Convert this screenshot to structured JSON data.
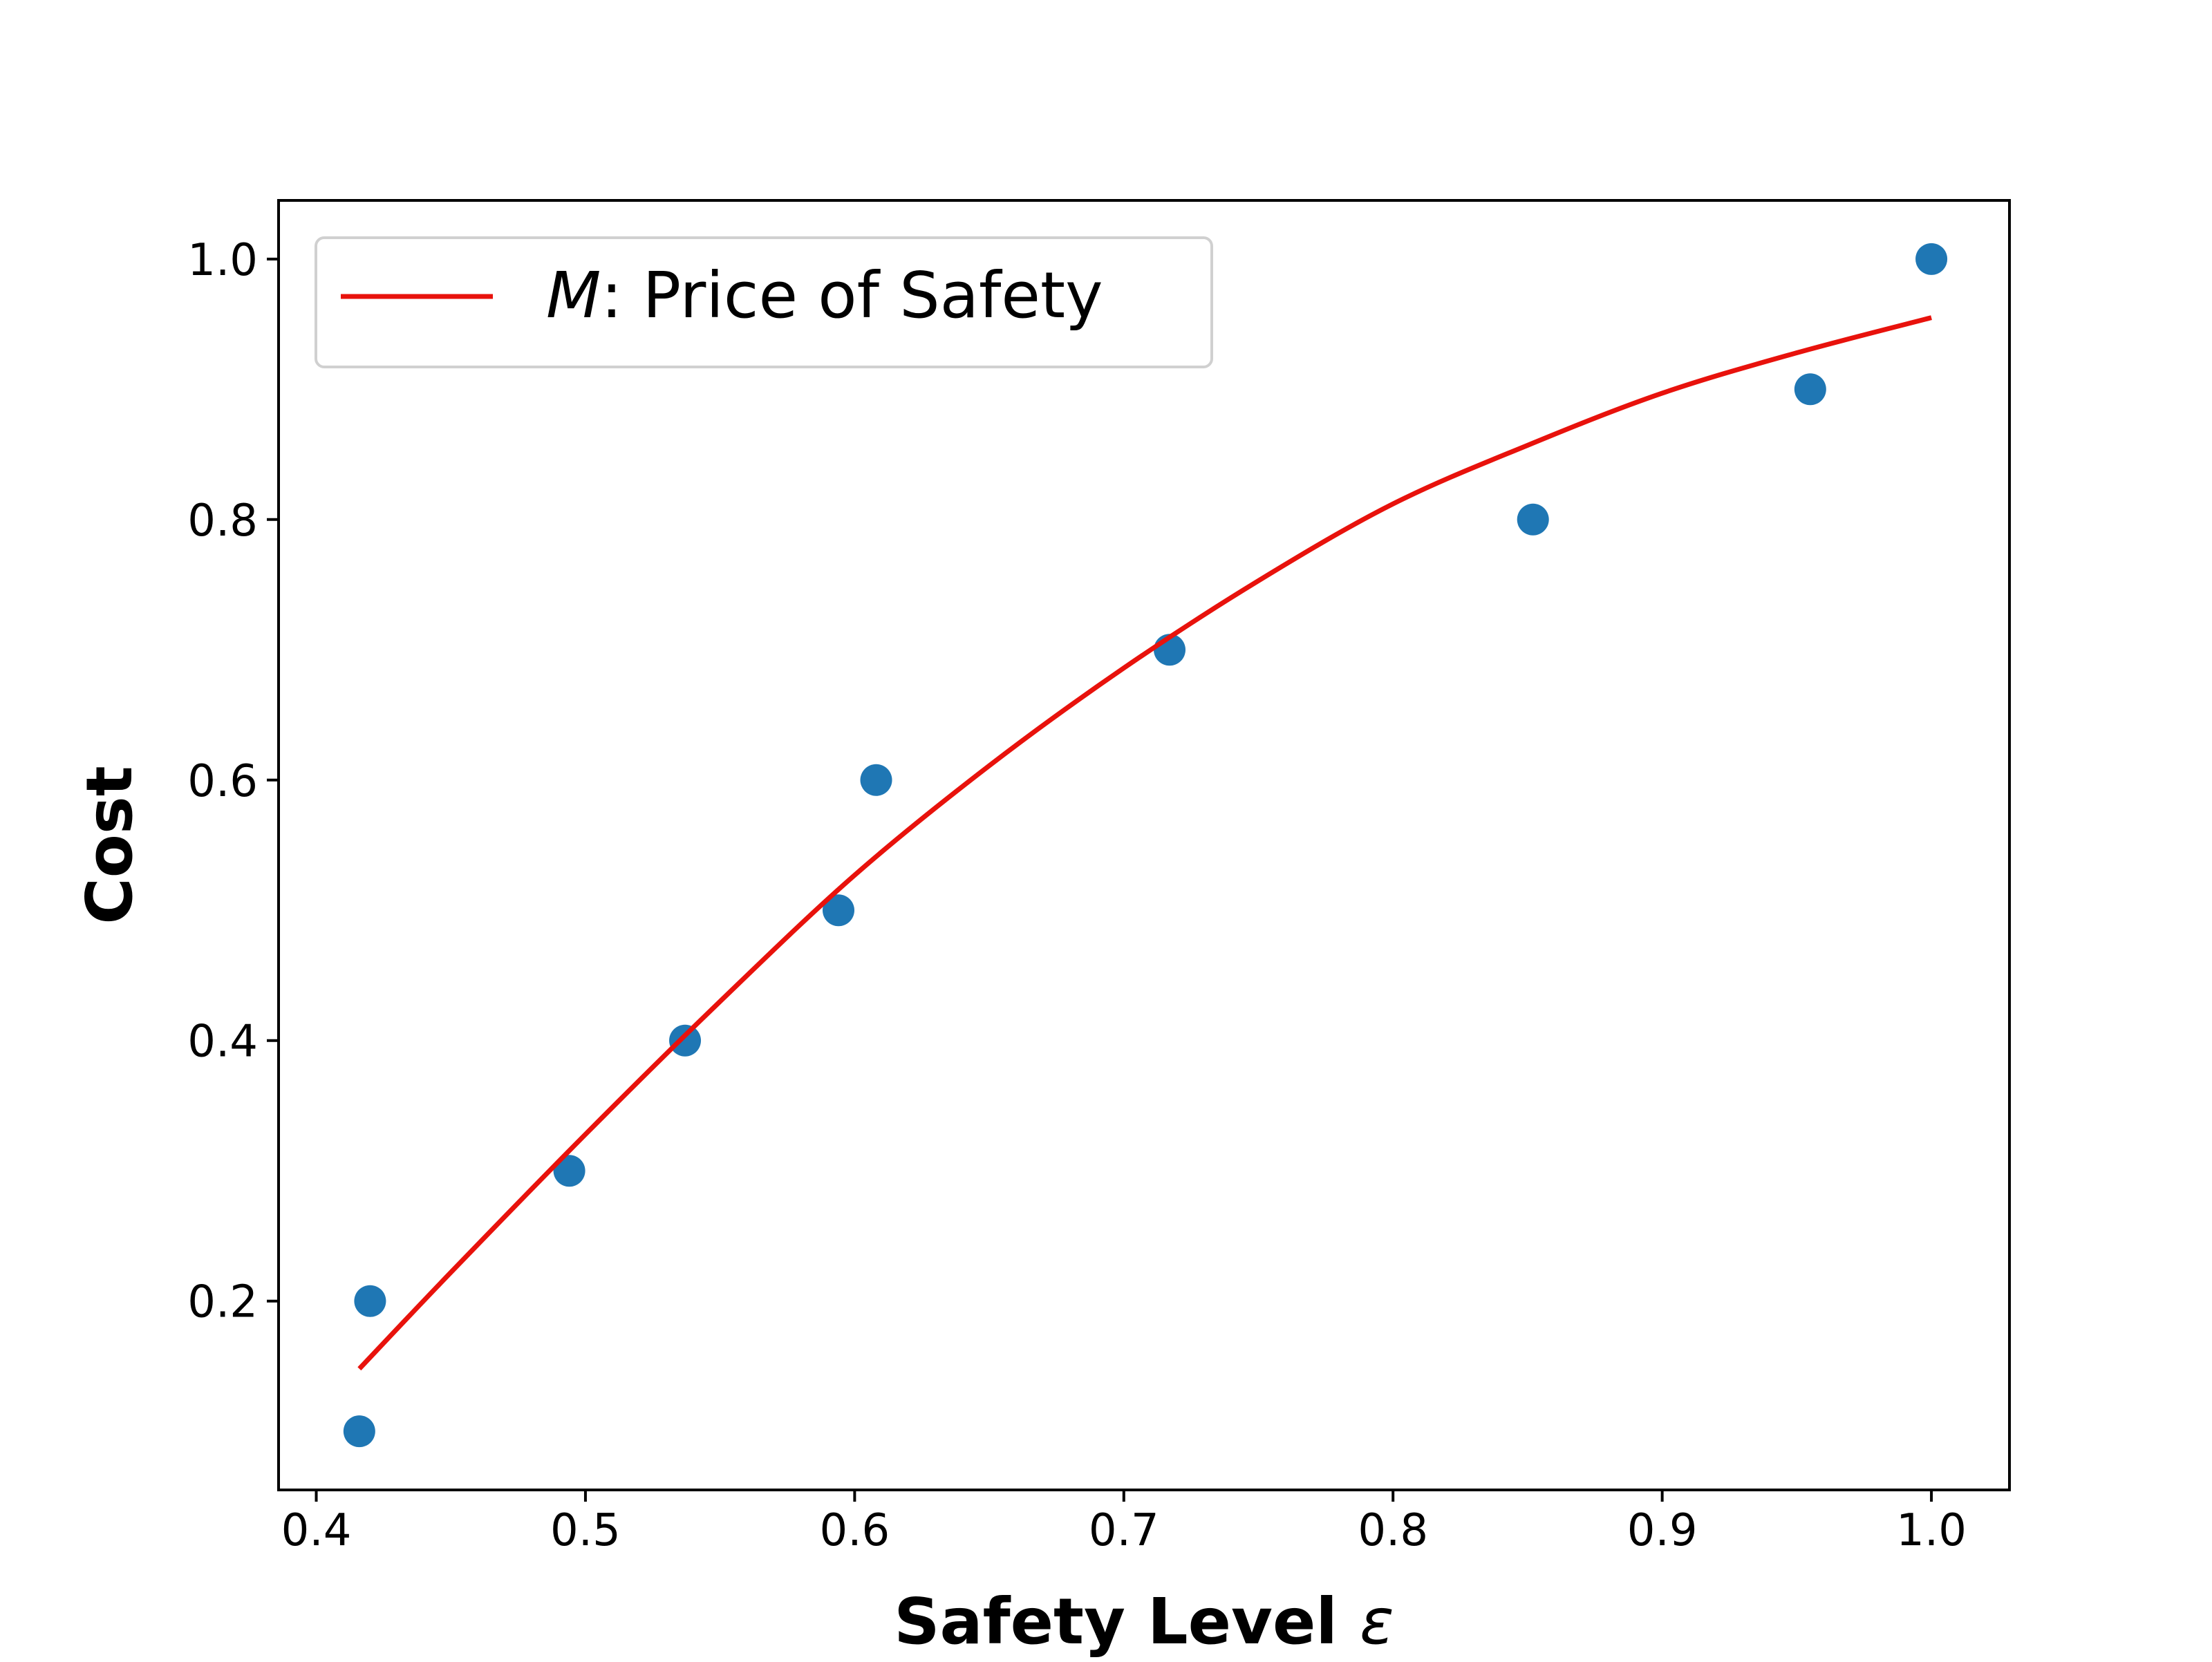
{
  "chart_data": {
    "type": "scatter",
    "xlabel_text": "Safety Level ",
    "xlabel_symbol": "ε",
    "ylabel": "Cost",
    "xlim": [
      0.386,
      1.029
    ],
    "ylim": [
      0.055,
      1.045
    ],
    "xticks": [
      0.4,
      0.5,
      0.6,
      0.7,
      0.8,
      0.9,
      1.0
    ],
    "xtick_labels": [
      "0.4",
      "0.5",
      "0.6",
      "0.7",
      "0.8",
      "0.9",
      "1.0"
    ],
    "yticks": [
      0.2,
      0.4,
      0.6,
      0.8,
      1.0
    ],
    "ytick_labels": [
      "0.2",
      "0.4",
      "0.6",
      "0.8",
      "1.0"
    ],
    "grid": false,
    "legend": {
      "placement": "upper-left",
      "entries": [
        {
          "symbol": "M",
          "label": ": Price of Safety",
          "color": "#e8120c",
          "marker": "line"
        }
      ]
    },
    "series": [
      {
        "type": "scatter",
        "color": "#1f77b4",
        "points": [
          [
            0.416,
            0.1
          ],
          [
            0.42,
            0.2
          ],
          [
            0.494,
            0.3
          ],
          [
            0.537,
            0.4
          ],
          [
            0.594,
            0.5
          ],
          [
            0.608,
            0.6
          ],
          [
            0.717,
            0.7
          ],
          [
            0.852,
            0.8
          ],
          [
            0.955,
            0.9
          ],
          [
            1.0,
            1.0
          ]
        ]
      },
      {
        "type": "line",
        "name": "M: Price of Safety",
        "color": "#e8120c",
        "points": [
          [
            0.416,
            0.148
          ],
          [
            0.45,
            0.222
          ],
          [
            0.5,
            0.328
          ],
          [
            0.55,
            0.43
          ],
          [
            0.6,
            0.527
          ],
          [
            0.65,
            0.611
          ],
          [
            0.7,
            0.686
          ],
          [
            0.75,
            0.753
          ],
          [
            0.8,
            0.812
          ],
          [
            0.85,
            0.857
          ],
          [
            0.9,
            0.897
          ],
          [
            0.95,
            0.928
          ],
          [
            1.0,
            0.955
          ]
        ]
      }
    ]
  }
}
